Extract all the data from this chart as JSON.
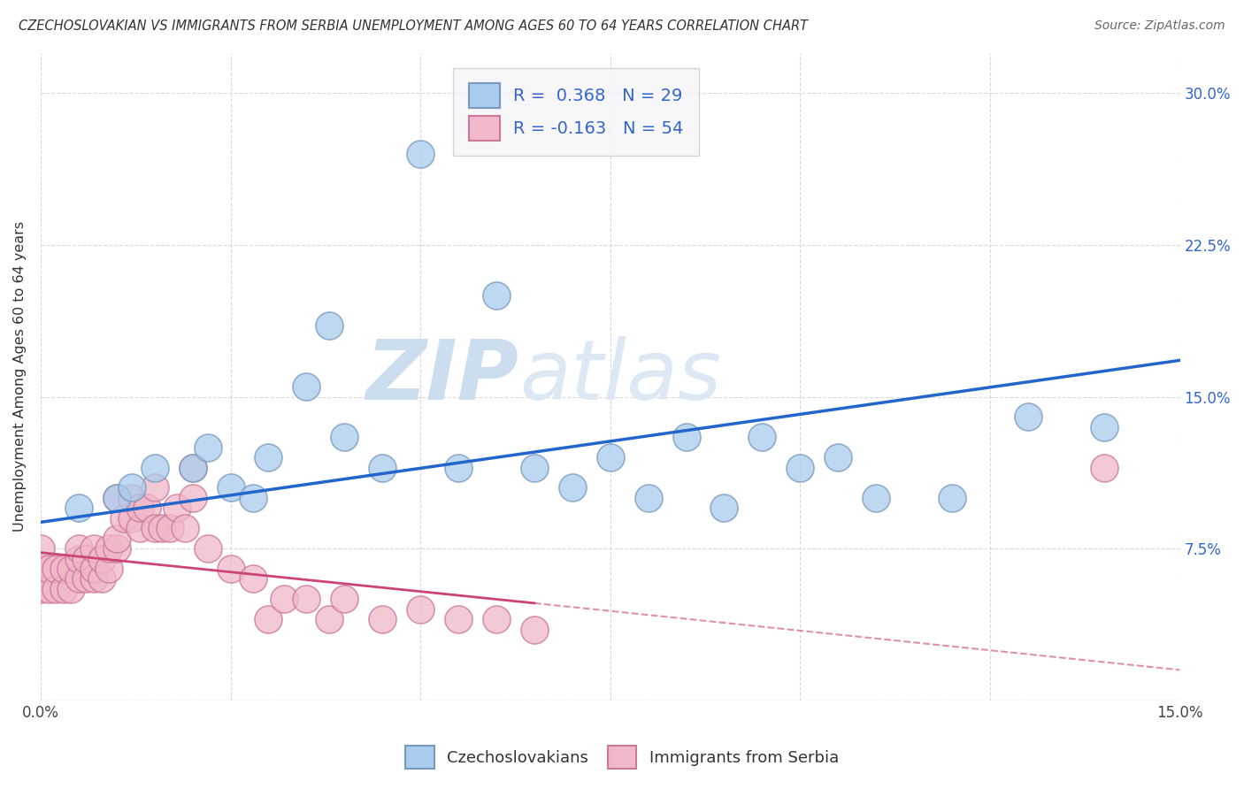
{
  "title": "CZECHOSLOVAKIAN VS IMMIGRANTS FROM SERBIA UNEMPLOYMENT AMONG AGES 60 TO 64 YEARS CORRELATION CHART",
  "source": "Source: ZipAtlas.com",
  "ylabel": "Unemployment Among Ages 60 to 64 years",
  "xlim": [
    0.0,
    0.15
  ],
  "ylim": [
    0.0,
    0.32
  ],
  "xticks": [
    0.0,
    0.025,
    0.05,
    0.075,
    0.1,
    0.125,
    0.15
  ],
  "xtick_labels": [
    "0.0%",
    "",
    "",
    "",
    "",
    "",
    "15.0%"
  ],
  "yticks": [
    0.0,
    0.075,
    0.15,
    0.225,
    0.3
  ],
  "ytick_labels_left": [
    "",
    "",
    "",
    "",
    ""
  ],
  "ytick_labels_right": [
    "",
    "7.5%",
    "15.0%",
    "22.5%",
    "30.0%"
  ],
  "grid_color": "#d0d0d0",
  "background_color": "#ffffff",
  "watermark": "ZIPatlas",
  "watermark_color": "#ccddf0",
  "series1_color": "#aaccee",
  "series1_edge": "#7799bb",
  "series2_color": "#f0b8c8",
  "series2_edge": "#cc7799",
  "series1_label": "Czechoslovakians",
  "series2_label": "Immigrants from Serbia",
  "R1": 0.368,
  "N1": 29,
  "R2": -0.163,
  "N2": 54,
  "legend_color": "#3366cc",
  "trend1_color": "#2266cc",
  "trend2_color": "#cc4477",
  "czecho_x": [
    0.005,
    0.01,
    0.012,
    0.015,
    0.02,
    0.022,
    0.025,
    0.028,
    0.03,
    0.035,
    0.038,
    0.04,
    0.045,
    0.05,
    0.055,
    0.06,
    0.065,
    0.07,
    0.075,
    0.08,
    0.085,
    0.09,
    0.095,
    0.1,
    0.105,
    0.11,
    0.12,
    0.13,
    0.14
  ],
  "czecho_y": [
    0.095,
    0.1,
    0.105,
    0.115,
    0.115,
    0.125,
    0.105,
    0.1,
    0.12,
    0.155,
    0.185,
    0.13,
    0.115,
    0.27,
    0.115,
    0.2,
    0.115,
    0.105,
    0.12,
    0.1,
    0.13,
    0.095,
    0.13,
    0.115,
    0.12,
    0.1,
    0.1,
    0.14,
    0.135
  ],
  "serbia_x": [
    0.0,
    0.0,
    0.0,
    0.001,
    0.001,
    0.002,
    0.002,
    0.003,
    0.003,
    0.004,
    0.004,
    0.005,
    0.005,
    0.005,
    0.006,
    0.006,
    0.007,
    0.007,
    0.007,
    0.008,
    0.008,
    0.009,
    0.009,
    0.01,
    0.01,
    0.01,
    0.011,
    0.012,
    0.012,
    0.013,
    0.013,
    0.014,
    0.015,
    0.015,
    0.016,
    0.017,
    0.018,
    0.019,
    0.02,
    0.02,
    0.022,
    0.025,
    0.028,
    0.03,
    0.032,
    0.035,
    0.038,
    0.04,
    0.045,
    0.05,
    0.055,
    0.06,
    0.065,
    0.14
  ],
  "serbia_y": [
    0.055,
    0.065,
    0.075,
    0.055,
    0.065,
    0.055,
    0.065,
    0.055,
    0.065,
    0.055,
    0.065,
    0.06,
    0.07,
    0.075,
    0.06,
    0.07,
    0.06,
    0.065,
    0.075,
    0.06,
    0.07,
    0.065,
    0.075,
    0.075,
    0.08,
    0.1,
    0.09,
    0.09,
    0.1,
    0.085,
    0.095,
    0.095,
    0.085,
    0.105,
    0.085,
    0.085,
    0.095,
    0.085,
    0.1,
    0.115,
    0.075,
    0.065,
    0.06,
    0.04,
    0.05,
    0.05,
    0.04,
    0.05,
    0.04,
    0.045,
    0.04,
    0.04,
    0.035,
    0.115
  ],
  "trend1_x0": 0.0,
  "trend1_y0": 0.088,
  "trend1_x1": 0.15,
  "trend1_y1": 0.168,
  "trend2_x0": 0.0,
  "trend2_y0": 0.073,
  "trend2_x1": 0.065,
  "trend2_y1": 0.048,
  "trend2_dash_x0": 0.065,
  "trend2_dash_y0": 0.048,
  "trend2_dash_x1": 0.15,
  "trend2_dash_y1": 0.015
}
